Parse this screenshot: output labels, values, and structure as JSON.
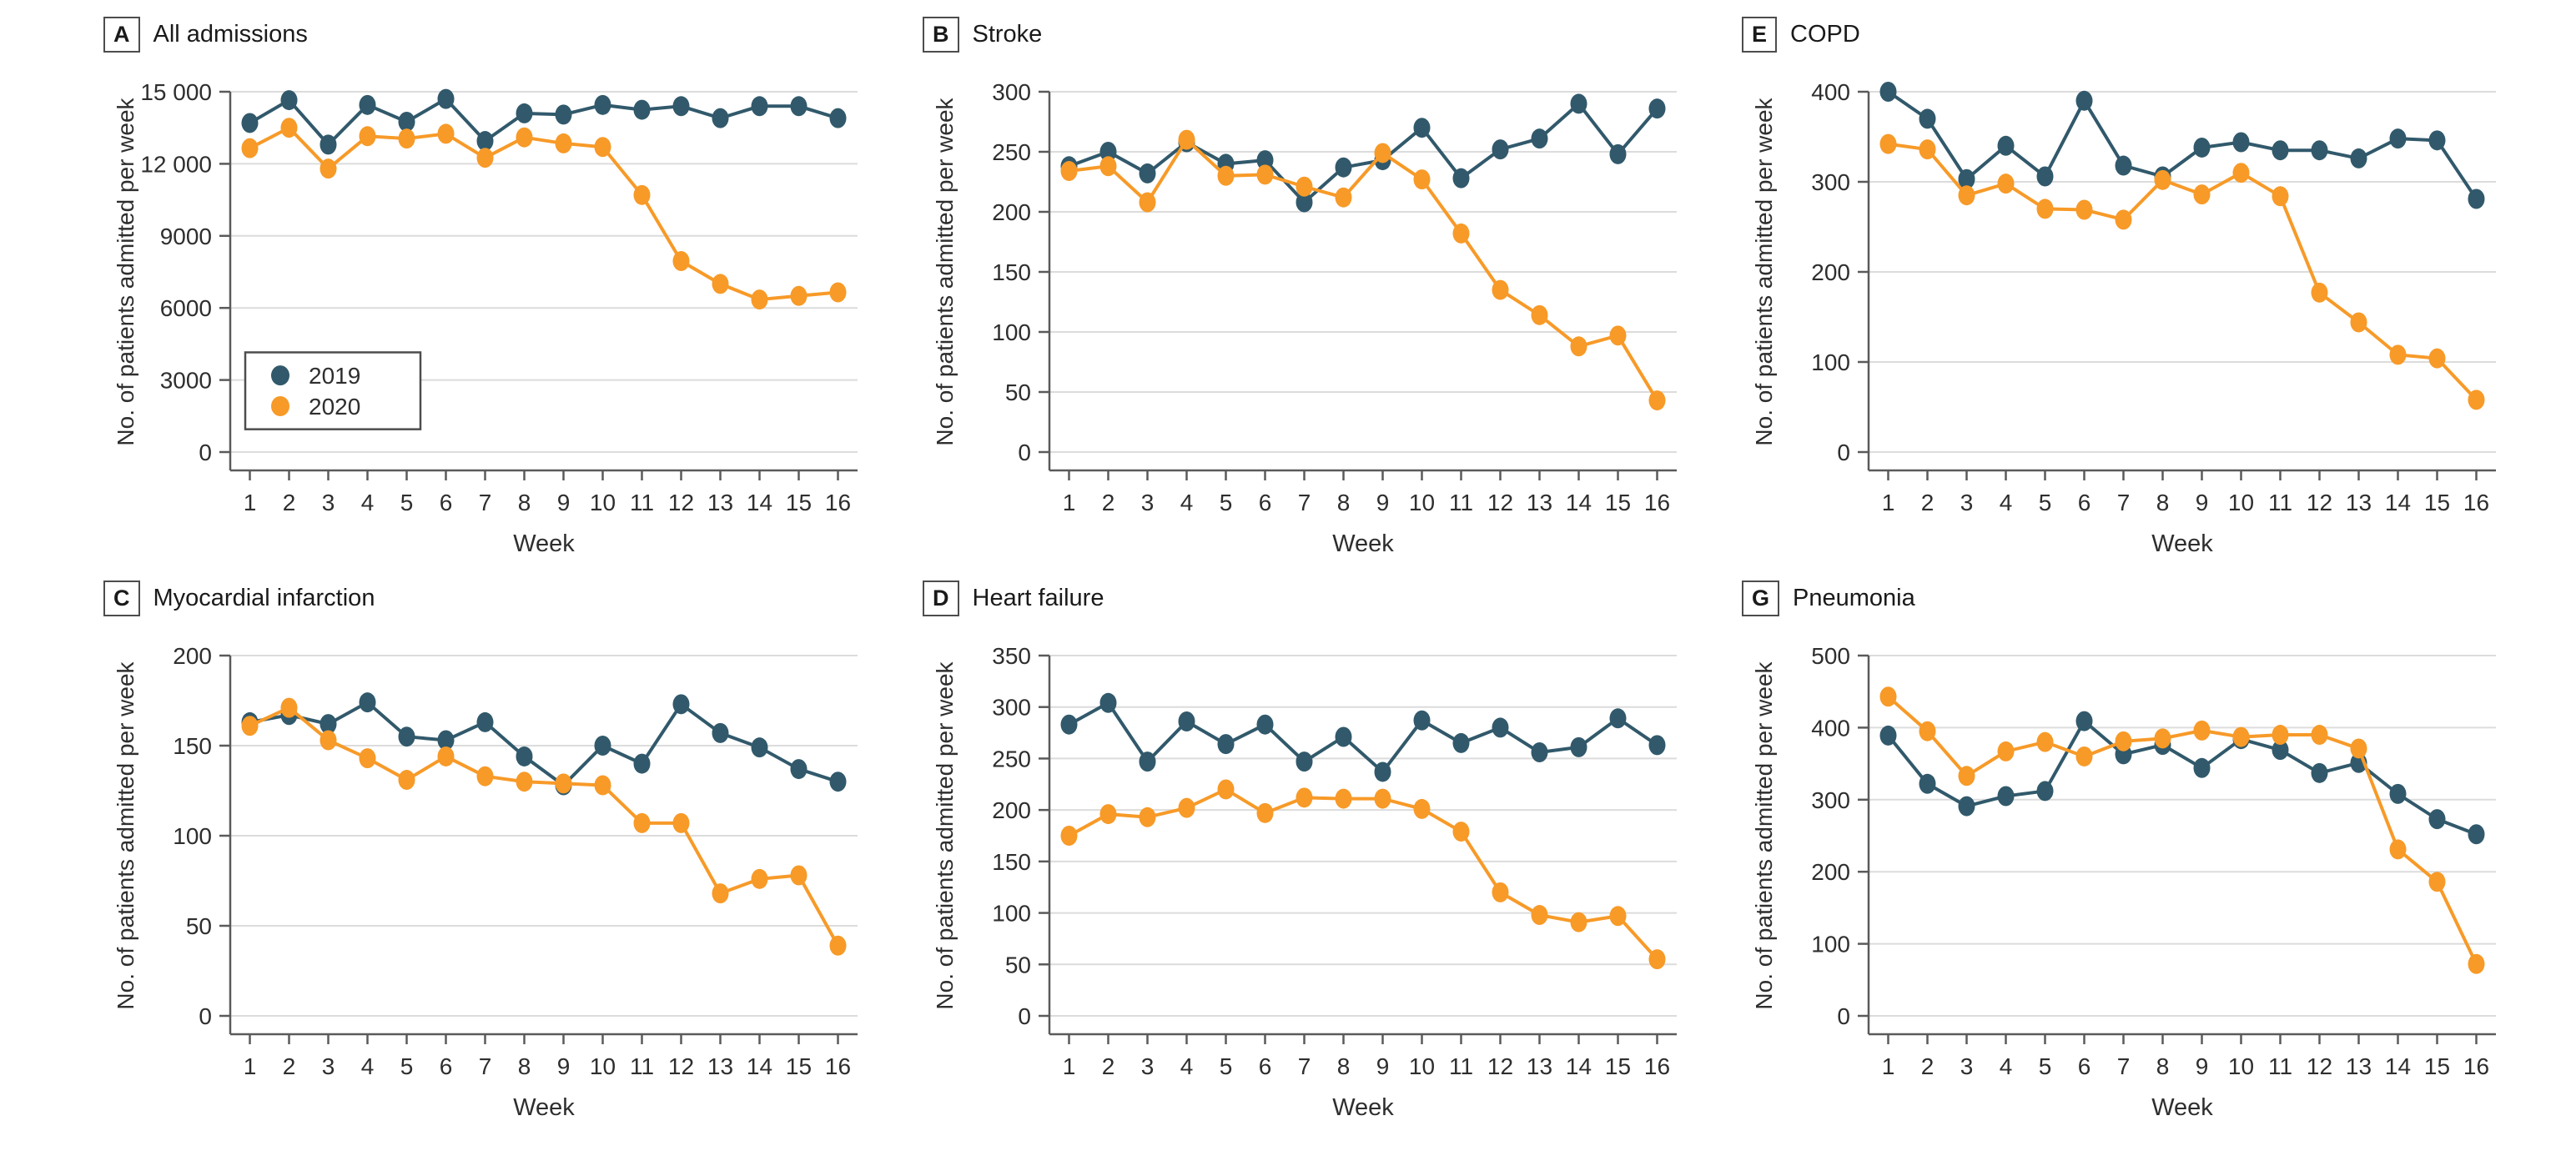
{
  "chart_data": {
    "type": "line",
    "x_label": "Week",
    "y_label": "No. of patients admitted per week",
    "x": [
      1,
      2,
      3,
      4,
      5,
      6,
      7,
      8,
      9,
      10,
      11,
      12,
      13,
      14,
      15,
      16
    ],
    "legend": [
      "2019",
      "2020"
    ],
    "legend_position": "inside panel A, lower left",
    "colors": {
      "2019": "#31596B",
      "2020": "#F79A28"
    },
    "grid_color": "#DCDCDC",
    "axis_color": "#5A5A5A",
    "panels": [
      {
        "panel": "A",
        "title": "All admissions",
        "ylim": [
          0,
          15000
        ],
        "yticks": [
          0,
          3000,
          6000,
          9000,
          12000,
          15000
        ],
        "ytick_labels": [
          "0",
          "3000",
          "6000",
          "9000",
          "12 000",
          "15 000"
        ],
        "legend": true,
        "series": [
          {
            "name": "2019",
            "values": [
              13700,
              14650,
              12800,
              14450,
              13750,
              14700,
              12950,
              14100,
              14050,
              14450,
              14250,
              14400,
              13900,
              14400,
              14400,
              13900
            ]
          },
          {
            "name": "2020",
            "values": [
              12650,
              13500,
              11800,
              13150,
              13050,
              13250,
              12250,
              13100,
              12850,
              12700,
              10700,
              7950,
              7000,
              6350,
              6500,
              6650
            ]
          }
        ]
      },
      {
        "panel": "B",
        "title": "Stroke",
        "ylim": [
          0,
          300
        ],
        "yticks": [
          0,
          50,
          100,
          150,
          200,
          250,
          300
        ],
        "legend": false,
        "series": [
          {
            "name": "2019",
            "values": [
              238,
              250,
              232,
              258,
              240,
              243,
              208,
              237,
              243,
              270,
              228,
              252,
              261,
              290,
              248,
              286
            ]
          },
          {
            "name": "2020",
            "values": [
              234,
              238,
              208,
              260,
              230,
              231,
              221,
              212,
              249,
              227,
              182,
              135,
              114,
              88,
              97,
              43
            ]
          }
        ]
      },
      {
        "panel": "E",
        "title": "COPD",
        "ylim": [
          0,
          400
        ],
        "yticks": [
          0,
          100,
          200,
          300,
          400
        ],
        "legend": false,
        "series": [
          {
            "name": "2019",
            "values": [
              400,
              370,
              303,
              340,
              306,
              390,
              318,
              306,
              338,
              344,
              335,
              335,
              326,
              348,
              346,
              281
            ]
          },
          {
            "name": "2020",
            "values": [
              342,
              336,
              285,
              298,
              270,
              269,
              258,
              302,
              286,
              310,
              284,
              177,
              144,
              108,
              104,
              58
            ]
          }
        ]
      },
      {
        "panel": "C",
        "title": "Myocardial infarction",
        "ylim": [
          0,
          200
        ],
        "yticks": [
          0,
          50,
          100,
          150,
          200
        ],
        "legend": false,
        "series": [
          {
            "name": "2019",
            "values": [
              163,
              167,
              162,
              174,
              155,
              153,
              163,
              144,
              128,
              150,
              140,
              173,
              157,
              149,
              137,
              130
            ]
          },
          {
            "name": "2020",
            "values": [
              161,
              171,
              153,
              143,
              131,
              144,
              133,
              130,
              129,
              128,
              107,
              107,
              68,
              76,
              78,
              39
            ]
          }
        ]
      },
      {
        "panel": "D",
        "title": "Heart failure",
        "ylim": [
          0,
          350
        ],
        "yticks": [
          0,
          50,
          100,
          150,
          200,
          250,
          300,
          350
        ],
        "legend": false,
        "series": [
          {
            "name": "2019",
            "values": [
              283,
              304,
              247,
              286,
              264,
              283,
              247,
              271,
              237,
              287,
              265,
              280,
              256,
              261,
              289,
              263
            ]
          },
          {
            "name": "2020",
            "values": [
              175,
              196,
              193,
              202,
              220,
              197,
              212,
              211,
              211,
              201,
              179,
              120,
              98,
              91,
              97,
              55
            ]
          }
        ]
      },
      {
        "panel": "G",
        "title": "Pneumonia",
        "ylim": [
          0,
          500
        ],
        "yticks": [
          0,
          100,
          200,
          300,
          400,
          500
        ],
        "legend": false,
        "series": [
          {
            "name": "2019",
            "values": [
              389,
              322,
              291,
              305,
              312,
              409,
              363,
              376,
              344,
              384,
              369,
              337,
              351,
              308,
              273,
              252
            ]
          },
          {
            "name": "2020",
            "values": [
              443,
              395,
              333,
              367,
              380,
              360,
              381,
              385,
              396,
              387,
              390,
              390,
              371,
              231,
              186,
              72
            ]
          }
        ]
      }
    ]
  }
}
